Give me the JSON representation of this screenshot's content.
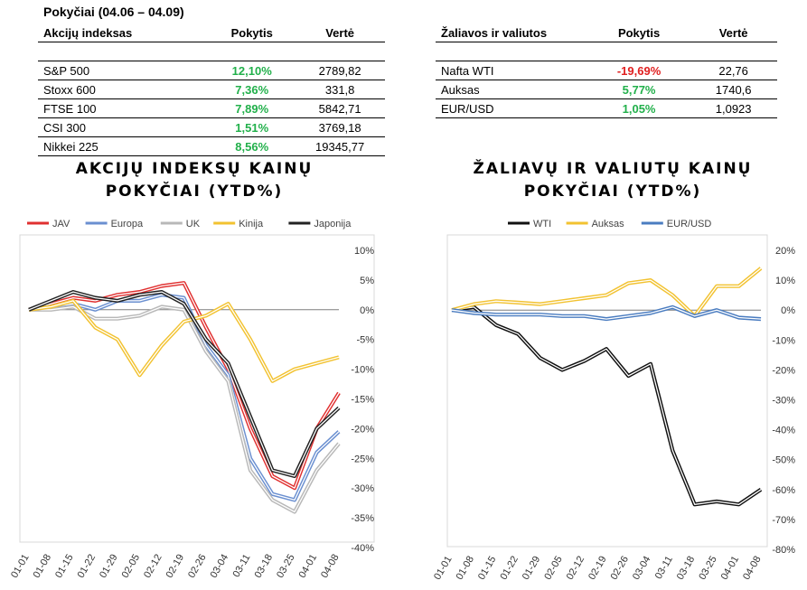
{
  "heading": "Pokyčiai (04.06 – 04.09)",
  "table_left": {
    "headers": [
      "Akcijų indeksas",
      "Pokytis",
      "Vertė"
    ],
    "rows": [
      {
        "name": "S&P 500",
        "change": "12,10%",
        "value": "2789,82",
        "sign": "pos"
      },
      {
        "name": "Stoxx 600",
        "change": "7,36%",
        "value": "331,8",
        "sign": "pos"
      },
      {
        "name": "FTSE 100",
        "change": "7,89%",
        "value": "5842,71",
        "sign": "pos"
      },
      {
        "name": "CSI 300",
        "change": "1,51%",
        "value": "3769,18",
        "sign": "pos"
      },
      {
        "name": "Nikkei 225",
        "change": "8,56%",
        "value": "19345,77",
        "sign": "pos"
      }
    ]
  },
  "table_right": {
    "headers": [
      "Žaliavos ir valiutos",
      "Pokytis",
      "Vertė"
    ],
    "rows": [
      {
        "name": "Nafta WTI",
        "change": "-19,69%",
        "value": "22,76",
        "sign": "neg"
      },
      {
        "name": "Auksas",
        "change": "5,77%",
        "value": "1740,6",
        "sign": "pos"
      },
      {
        "name": "EUR/USD",
        "change": "1,05%",
        "value": "1,0923",
        "sign": "pos"
      }
    ]
  },
  "chart_data": [
    {
      "type": "line",
      "title": "AKCIJŲ INDEKSŲ KAINŲ POKYČIAI (YTD%)",
      "title_lines": [
        "AKCIJŲ INDEKSŲ KAINŲ",
        "POKYČIAI (YTD%)"
      ],
      "x": [
        "01-01",
        "01-08",
        "01-15",
        "01-22",
        "01-29",
        "02-05",
        "02-12",
        "02-19",
        "02-26",
        "03-04",
        "03-11",
        "03-18",
        "03-25",
        "04-01",
        "04-08"
      ],
      "ylim": [
        -40,
        10
      ],
      "yticks": [
        "10%",
        "5%",
        "0%",
        "-5%",
        "-10%",
        "-15%",
        "-20%",
        "-25%",
        "-30%",
        "-35%",
        "-40%"
      ],
      "legend_position": "top",
      "grid": false,
      "series": [
        {
          "name": "JAV",
          "color": "#e03030",
          "values": [
            0,
            1,
            2,
            1.5,
            2.5,
            3,
            4,
            4.5,
            -3,
            -10,
            -20,
            -28,
            -30,
            -20,
            -14
          ]
        },
        {
          "name": "Europa",
          "color": "#6a8fd0",
          "values": [
            0,
            0.5,
            1,
            0,
            1.5,
            1.5,
            2.5,
            2,
            -6,
            -11,
            -25,
            -31,
            -32,
            -24,
            -20.5
          ]
        },
        {
          "name": "UK",
          "color": "#b8b8b8",
          "values": [
            0,
            0,
            0.5,
            -1.5,
            -1.5,
            -1,
            0.5,
            0,
            -7,
            -12,
            -27,
            -32,
            -34,
            -27,
            -22.5
          ]
        },
        {
          "name": "Kinija",
          "color": "#f2c230",
          "values": [
            0,
            0.5,
            1.5,
            -3,
            -5,
            -11,
            -6,
            -2,
            -1,
            1,
            -5,
            -12,
            -10,
            -9,
            -8
          ]
        },
        {
          "name": "Japonija",
          "color": "#222222",
          "values": [
            0,
            1.5,
            3,
            2,
            1.5,
            2.5,
            3,
            1,
            -5,
            -9,
            -18,
            -27,
            -28,
            -20,
            -16.5
          ]
        }
      ]
    },
    {
      "type": "line",
      "title": "ŽALIAVŲ IR VALIUTŲ KAINŲ POKYČIAI (YTD%)",
      "title_lines": [
        "ŽALIAVŲ IR VALIUTŲ KAINŲ",
        "POKYČIAI (YTD%)"
      ],
      "x": [
        "01-01",
        "01-08",
        "01-15",
        "01-22",
        "01-29",
        "02-05",
        "02-12",
        "02-19",
        "02-26",
        "03-04",
        "03-11",
        "03-18",
        "03-25",
        "04-01",
        "04-08"
      ],
      "ylim": [
        -80,
        20
      ],
      "yticks": [
        "20%",
        "10%",
        "0%",
        "-10%",
        "-20%",
        "-30%",
        "-40%",
        "-50%",
        "-60%",
        "-70%",
        "-80%"
      ],
      "legend_position": "top",
      "grid": false,
      "series": [
        {
          "name": "WTI",
          "color": "#111111",
          "values": [
            0,
            1,
            -5,
            -8,
            -16,
            -20,
            -17,
            -13,
            -22,
            -18,
            -47,
            -65,
            -64,
            -65,
            -60
          ]
        },
        {
          "name": "Auksas",
          "color": "#f2c230",
          "values": [
            0,
            2,
            3,
            2.5,
            2,
            3,
            4,
            5,
            9,
            10,
            5,
            -2,
            8,
            8,
            14
          ]
        },
        {
          "name": "EUR/USD",
          "color": "#4a7cc0",
          "values": [
            0,
            -1,
            -1.5,
            -1.5,
            -1.5,
            -2,
            -2,
            -3,
            -2,
            -1,
            1,
            -2,
            0,
            -2.5,
            -3
          ]
        }
      ]
    }
  ]
}
